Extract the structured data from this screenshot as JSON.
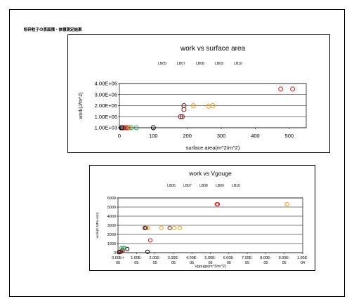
{
  "page": {
    "heading": "粉砕粒子の表面積・体積測定結果"
  },
  "chart_data": [
    {
      "type": "scatter",
      "title": "work vs surface area",
      "xlabel": "surface area(m^2/m^2)",
      "ylabel": "work(J/m^2)",
      "xlim": [
        0,
        550
      ],
      "ylim": [
        0,
        4000000
      ],
      "xticks": [
        0,
        100,
        200,
        300,
        400,
        500
      ],
      "yticks": [
        {
          "value": 1000,
          "label": "1.00E+03"
        },
        {
          "value": 1000000,
          "label": "1.00E+06"
        },
        {
          "value": 2000000,
          "label": "2.00E+06"
        },
        {
          "value": 3000000,
          "label": "3.00E+06"
        },
        {
          "value": 4000000,
          "label": "4.00E+06"
        }
      ],
      "grid": "horizontal",
      "legend_position": "top",
      "series": [
        {
          "name": "LB05",
          "color": "#000000",
          "points": [
            [
              5,
              1000
            ],
            [
              8,
              1000
            ],
            [
              100,
              1000
            ]
          ]
        },
        {
          "name": "LB07",
          "color": "#7a1f1f",
          "points": [
            [
              12,
              1000
            ],
            [
              18,
              1000
            ],
            [
              180,
              1000000
            ],
            [
              185,
              1000000
            ],
            [
              190,
              2000000
            ],
            [
              190,
              1650000
            ]
          ]
        },
        {
          "name": "LB08",
          "color": "#cc2222",
          "points": [
            [
              20,
              1000
            ],
            [
              25,
              1000
            ],
            [
              475,
              3500000
            ],
            [
              510,
              3500000
            ]
          ]
        },
        {
          "name": "LB09",
          "color": "#f0a020",
          "points": [
            [
              30,
              1000
            ],
            [
              218,
              2000000
            ],
            [
              262,
              1950000
            ],
            [
              275,
              2000000
            ]
          ]
        },
        {
          "name": "LB10",
          "color": "#3aa060",
          "points": [
            [
              35,
              1000
            ],
            [
              50,
              1000
            ]
          ]
        }
      ]
    },
    {
      "type": "scatter",
      "title": "work  vs  Vgouge",
      "xlabel": "Vgouge(m^3/m^2)",
      "ylabel": "work(K.MPa.mm)",
      "xlim": [
        0,
        0.0001
      ],
      "ylim": [
        0,
        6000
      ],
      "xticks": [
        {
          "value": 0,
          "label": [
            "0.00E+",
            "00"
          ]
        },
        {
          "value": 1e-05,
          "label": [
            "1.00E-",
            "05"
          ]
        },
        {
          "value": 2e-05,
          "label": [
            "2.00E-",
            "05"
          ]
        },
        {
          "value": 3e-05,
          "label": [
            "3.00E-",
            "05"
          ]
        },
        {
          "value": 4e-05,
          "label": [
            "4.00E-",
            "05"
          ]
        },
        {
          "value": 5e-05,
          "label": [
            "5.00E-",
            "05"
          ]
        },
        {
          "value": 6e-05,
          "label": [
            "6.00E-",
            "05"
          ]
        },
        {
          "value": 7e-05,
          "label": [
            "7.00E-",
            "05"
          ]
        },
        {
          "value": 8e-05,
          "label": [
            "8.00E-",
            "05"
          ]
        },
        {
          "value": 9e-05,
          "label": [
            "9.00E-",
            "05"
          ]
        },
        {
          "value": 0.0001,
          "label": [
            "1.00E-",
            "04"
          ]
        }
      ],
      "yticks": [
        0,
        1000,
        2000,
        3000,
        4000,
        5000,
        6000
      ],
      "grid": "horizontal",
      "legend_position": "top",
      "series": [
        {
          "name": "LB05",
          "color": "#000000",
          "points": [
            [
              5e-07,
              50
            ],
            [
              1.5e-06,
              100
            ],
            [
              5e-06,
              400
            ],
            [
              1.5e-05,
              2700
            ],
            [
              1.6e-05,
              100
            ]
          ]
        },
        {
          "name": "LB07",
          "color": "#7a1f1f",
          "points": [
            [
              1e-06,
              100
            ],
            [
              2.5e-06,
              300
            ],
            [
              1.45e-05,
              2700
            ],
            [
              2.8e-05,
              2700
            ]
          ]
        },
        {
          "name": "LB08",
          "color": "#cc2222",
          "points": [
            [
              2.5e-06,
              200
            ],
            [
              1.75e-05,
              1350
            ],
            [
              5.35e-05,
              5300
            ],
            [
              5.4e-05,
              5300
            ]
          ]
        },
        {
          "name": "LB09",
          "color": "#f0a020",
          "points": [
            [
              1.6e-05,
              2700
            ],
            [
              2.35e-05,
              2700
            ],
            [
              3.05e-05,
              2700
            ],
            [
              3.35e-05,
              2700
            ],
            [
              9.15e-05,
              5300
            ]
          ]
        },
        {
          "name": "LB10",
          "color": "#3aa060",
          "points": [
            [
              2e-06,
              500
            ],
            [
              3e-06,
              500
            ],
            [
              3.5e-06,
              500
            ]
          ]
        }
      ]
    }
  ]
}
